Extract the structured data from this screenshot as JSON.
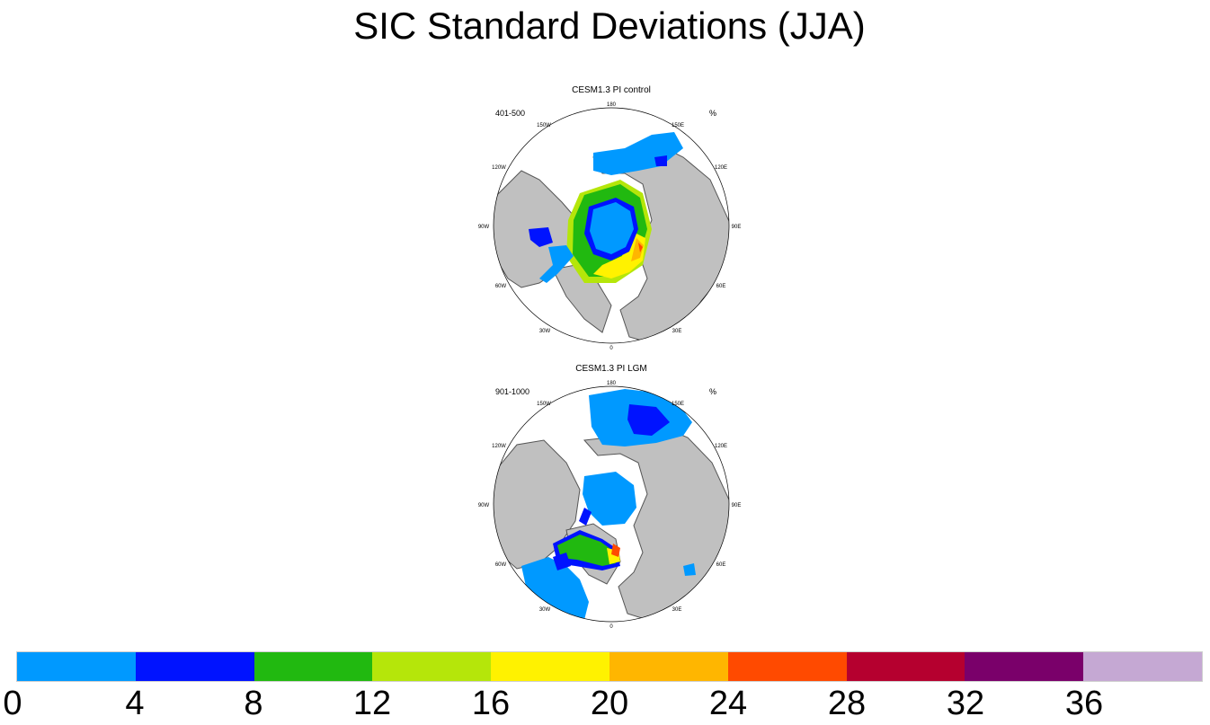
{
  "title": "SIC Standard Deviations (JJA)",
  "panels": [
    {
      "title": "CESM1.3 PI control",
      "left_string": "401-500",
      "right_string": "%",
      "lon_labels": [
        "180",
        "150E",
        "120E",
        "90E",
        "60E",
        "30E",
        "0",
        "30W",
        "60W",
        "90W",
        "120W",
        "150W"
      ]
    },
    {
      "title": "CESM1.3 PI LGM",
      "left_string": "901-1000",
      "right_string": "%",
      "lon_labels": [
        "180",
        "150E",
        "120E",
        "90E",
        "60E",
        "30E",
        "0",
        "30W",
        "60W",
        "90W",
        "120W",
        "150W"
      ]
    }
  ],
  "colorbar": {
    "colors": [
      "#0099ff",
      "#0013ff",
      "#21b910",
      "#b5e60a",
      "#fff200",
      "#ffb600",
      "#ff4a00",
      "#b5002f",
      "#7a006a",
      "#c5a8d3"
    ],
    "labels": [
      "0",
      "4",
      "8",
      "12",
      "16",
      "20",
      "24",
      "28",
      "32",
      "36"
    ]
  },
  "colors": {
    "land": "#c0c0c0",
    "coast": "#555555",
    "ocean": "#ffffff"
  }
}
